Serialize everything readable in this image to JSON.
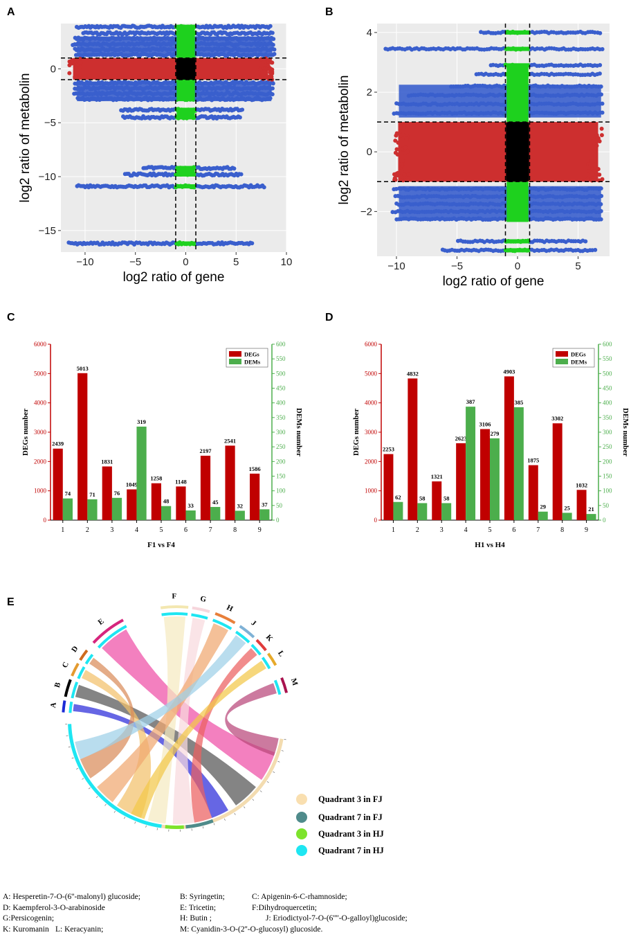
{
  "panels": {
    "a": "A",
    "b": "B",
    "c": "C",
    "d": "D",
    "e": "E"
  },
  "scatter_common": {
    "xlabel": "log2 ratio of gene",
    "ylabel": "log2 ratio of metabolin",
    "colors": {
      "background": "#ebebeb",
      "outside": "#3a5fcd",
      "metabolite_only": "#cd2f2f",
      "gene_only": "#1ed11e",
      "neither": "#000000"
    }
  },
  "chart_data": [
    {
      "id": "A",
      "type": "scatter",
      "title": "",
      "xlabel": "log2 ratio of gene",
      "ylabel": "log2 ratio of metabolin",
      "xlim": [
        -12.4,
        10
      ],
      "ylim": [
        -17,
        4.2
      ],
      "xticks": [
        -10,
        -5,
        0,
        5,
        10
      ],
      "yticks": [
        -15,
        -10,
        -5,
        0
      ],
      "x_thresholds": [
        -1,
        1
      ],
      "y_thresholds": [
        -1,
        1
      ],
      "bands": [
        {
          "y": 3.9,
          "x": [
            -10.8,
            8.4
          ]
        },
        {
          "y": 3.3,
          "x": [
            -10.2,
            8.6
          ]
        },
        {
          "y": 2.8,
          "x": [
            -11.0,
            8.7
          ]
        },
        {
          "y": 2.3,
          "x": [
            -11.2,
            8.7
          ]
        },
        {
          "y": 1.8,
          "x": [
            -11.0,
            8.8
          ]
        },
        {
          "y": 1.3,
          "x": [
            -10.9,
            8.8
          ]
        },
        {
          "y": -1.3,
          "x": [
            -11.0,
            8.7
          ]
        },
        {
          "y": -1.8,
          "x": [
            -11.0,
            8.6
          ]
        },
        {
          "y": -2.3,
          "x": [
            -11.1,
            8.6
          ]
        },
        {
          "y": -2.8,
          "x": [
            -10.7,
            8.4
          ]
        },
        {
          "y": -3.8,
          "x": [
            -6.4,
            5.6
          ]
        },
        {
          "y": -4.5,
          "x": [
            -6.2,
            5.4
          ]
        },
        {
          "y": -9.2,
          "x": [
            -4.2,
            4.8
          ]
        },
        {
          "y": -9.8,
          "x": [
            -6.0,
            5.5
          ]
        },
        {
          "y": -10.9,
          "x": [
            -10.8,
            7.8
          ]
        },
        {
          "y": -16.2,
          "x": [
            -11.6,
            6.6
          ]
        }
      ],
      "red_band": {
        "y": [
          -1,
          1
        ],
        "x": [
          -11.6,
          8.6
        ]
      }
    },
    {
      "id": "B",
      "type": "scatter",
      "title": "",
      "xlabel": "log2 ratio of gene",
      "ylabel": "log2 ratio of metabolin",
      "xlim": [
        -11.6,
        7.6
      ],
      "ylim": [
        -3.5,
        4.3
      ],
      "xticks": [
        -10,
        -5,
        0,
        5
      ],
      "yticks": [
        -2,
        0,
        2,
        4
      ],
      "x_thresholds": [
        -1,
        1
      ],
      "y_thresholds": [
        -1,
        1
      ],
      "bands": [
        {
          "y": 4.0,
          "x": [
            -3.0,
            6.8
          ]
        },
        {
          "y": 3.45,
          "x": [
            -10.9,
            7.0
          ]
        },
        {
          "y": 2.9,
          "x": [
            -2.2,
            6.8
          ]
        },
        {
          "y": 2.6,
          "x": [
            -3.4,
            6.8
          ]
        },
        {
          "y": 2.2,
          "x": [
            -5.5,
            6.9
          ]
        },
        {
          "y": 1.9,
          "x": [
            -9.0,
            6.9
          ]
        },
        {
          "y": 1.6,
          "x": [
            -10.0,
            7.0
          ]
        },
        {
          "y": 1.3,
          "x": [
            -10.2,
            7.0
          ]
        },
        {
          "y": -1.25,
          "x": [
            -10.2,
            6.9
          ]
        },
        {
          "y": -1.5,
          "x": [
            -10.1,
            6.9
          ]
        },
        {
          "y": -1.75,
          "x": [
            -10.0,
            6.9
          ]
        },
        {
          "y": -2.0,
          "x": [
            -10.3,
            6.9
          ]
        },
        {
          "y": -2.25,
          "x": [
            -10.0,
            6.9
          ]
        },
        {
          "y": -3.0,
          "x": [
            -4.9,
            5.6
          ]
        },
        {
          "y": -3.3,
          "x": [
            -6.2,
            6.4
          ]
        }
      ],
      "red_band": {
        "y": [
          -1,
          1
        ],
        "x": [
          -10.2,
          7.0
        ]
      }
    },
    {
      "id": "C",
      "type": "bar",
      "title": "",
      "xlabel": "F1 vs F4",
      "ylabel": "DEGs number",
      "y2label": "DEMs number",
      "categories": [
        "1",
        "2",
        "3",
        "4",
        "5",
        "6",
        "7",
        "8",
        "9"
      ],
      "ylim": [
        0,
        6000
      ],
      "y2lim": [
        0,
        600
      ],
      "yticks": [
        0,
        1000,
        2000,
        3000,
        4000,
        5000,
        6000
      ],
      "y2ticks": [
        0,
        50,
        100,
        150,
        200,
        250,
        300,
        350,
        400,
        450,
        500,
        550,
        600
      ],
      "series": [
        {
          "name": "DEGs",
          "axis": "left",
          "color": "#c00000",
          "values": [
            2439,
            5013,
            1831,
            1049,
            1258,
            1148,
            2197,
            2541,
            1586
          ]
        },
        {
          "name": "DEMs",
          "axis": "right",
          "color": "#4cae4c",
          "values": [
            74,
            71,
            76,
            319,
            48,
            33,
            45,
            32,
            37
          ]
        }
      ],
      "legend": "top-right"
    },
    {
      "id": "D",
      "type": "bar",
      "title": "",
      "xlabel": "H1 vs H4",
      "ylabel": "DEGs number",
      "y2label": "DEMs number",
      "categories": [
        "1",
        "2",
        "3",
        "4",
        "5",
        "6",
        "7",
        "8",
        "9"
      ],
      "ylim": [
        0,
        6000
      ],
      "y2lim": [
        0,
        600
      ],
      "yticks": [
        0,
        1000,
        2000,
        3000,
        4000,
        5000,
        6000
      ],
      "y2ticks": [
        0,
        50,
        100,
        150,
        200,
        250,
        300,
        350,
        400,
        450,
        500,
        550,
        600
      ],
      "series": [
        {
          "name": "DEGs",
          "axis": "left",
          "color": "#c00000",
          "values": [
            2253,
            4832,
            1321,
            2623,
            3106,
            4903,
            1875,
            3302,
            1032
          ]
        },
        {
          "name": "DEMs",
          "axis": "right",
          "color": "#4cae4c",
          "values": [
            62,
            58,
            58,
            387,
            279,
            385,
            29,
            25,
            21
          ]
        }
      ],
      "legend": "top-right"
    },
    {
      "id": "E",
      "type": "chord",
      "title": "",
      "sectors": [
        "A",
        "B",
        "C",
        "D",
        "E",
        "F",
        "G",
        "H",
        "J",
        "K",
        "L",
        "M"
      ],
      "sector_colors": [
        "#1c2bd6",
        "#000000",
        "#e39a2f",
        "#ce6a1e",
        "#d6257d",
        "#f3e7b0",
        "#f6d6dc",
        "#e87f3a",
        "#7fb2d6",
        "#e03b3b",
        "#e6a92a",
        "#a8124e"
      ],
      "groups": [
        {
          "name": "Quadrant 3 in FJ",
          "color": "#f9dfb0"
        },
        {
          "name": "Quadrant 7 in FJ",
          "color": "#4f8b8b"
        },
        {
          "name": "Quadrant 3 in HJ",
          "color": "#7de32c"
        },
        {
          "name": "Quadrant 7 in HJ",
          "color": "#1ee6f2"
        }
      ]
    }
  ],
  "abbreviations": {
    "A": "A: Hesperetin-7-O-(6''-malonyl) glucoside;",
    "B": "B: Syringetin;",
    "C": "C: Apigenin-6-C-rhamnoside;",
    "D": "D: Kaempferol-3-O-arabinoside",
    "E": "E: Tricetin;",
    "F": "F:Dihydroquercetin;",
    "G": "G:Persicogenin;",
    "H": "H: Butin ;",
    "J": "J: Eriodictyol-7-O-(6''''-O-galloyl)glucoside;",
    "K": "K: Kuromanin",
    "L": "L: Keracyanin;",
    "M": "M: Cyanidin-3-O-(2''-O-glucosyl) glucoside."
  }
}
